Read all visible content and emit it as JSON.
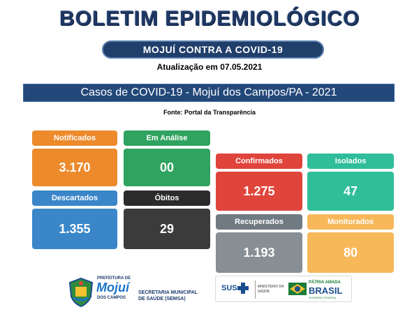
{
  "header": {
    "title": "BOLETIM EPIDEMIOLÓGICO",
    "subtitle": "MOJUÍ CONTRA A COVID-19",
    "update": "Atualização em 07.05.2021"
  },
  "banner": {
    "text": "Casos de COVID-19  -  Mojuí dos Campos/PA - 2021"
  },
  "source": "Fonte: Portal da Transparência",
  "cards": {
    "notificados": {
      "label": "Notificados",
      "value": "3.170",
      "label_color": "#ec8a2c",
      "value_color": "#ec8a2c"
    },
    "em_analise": {
      "label": "Em Análise",
      "value": "00",
      "label_color": "#2fa35f",
      "value_color": "#2fa35f"
    },
    "descartados": {
      "label": "Descartados",
      "value": "1.355",
      "label_color": "#3a86c9",
      "value_color": "#3a86c9"
    },
    "obitos": {
      "label": "Óbitos",
      "value": "29",
      "label_color": "#2b2b2b",
      "value_color": "#3b3b3b"
    },
    "confirmados": {
      "label": "Confirmados",
      "value": "1.275",
      "label_color": "#e0453c",
      "value_color": "#e0453c"
    },
    "isolados": {
      "label": "Isolados",
      "value": "47",
      "label_color": "#2fbd9a",
      "value_color": "#2fbd9a"
    },
    "recuperados": {
      "label": "Recuperados",
      "value": "1.193",
      "label_color": "#6f7a82",
      "value_color": "#878f95"
    },
    "monitorados": {
      "label": "Monitorados",
      "value": "80",
      "label_color": "#f7b85a",
      "value_color": "#f7b85a"
    }
  },
  "footer": {
    "prefeitura_line1": "PREFEITURA DE",
    "prefeitura_name": "Mojuí",
    "prefeitura_line3": "DOS CAMPOS",
    "secretaria_line1": "SECRETARIA MUNICIPAL",
    "secretaria_line2": "DE SAÚDE (SEMSA)",
    "sus": "SUS",
    "ministerio": "MINISTÉRIO DA SAÚDE",
    "brasil_top": "PÁTRIA AMADA",
    "brasil_name": "BRASIL",
    "brasil_sub": "GOVERNO FEDERAL"
  }
}
